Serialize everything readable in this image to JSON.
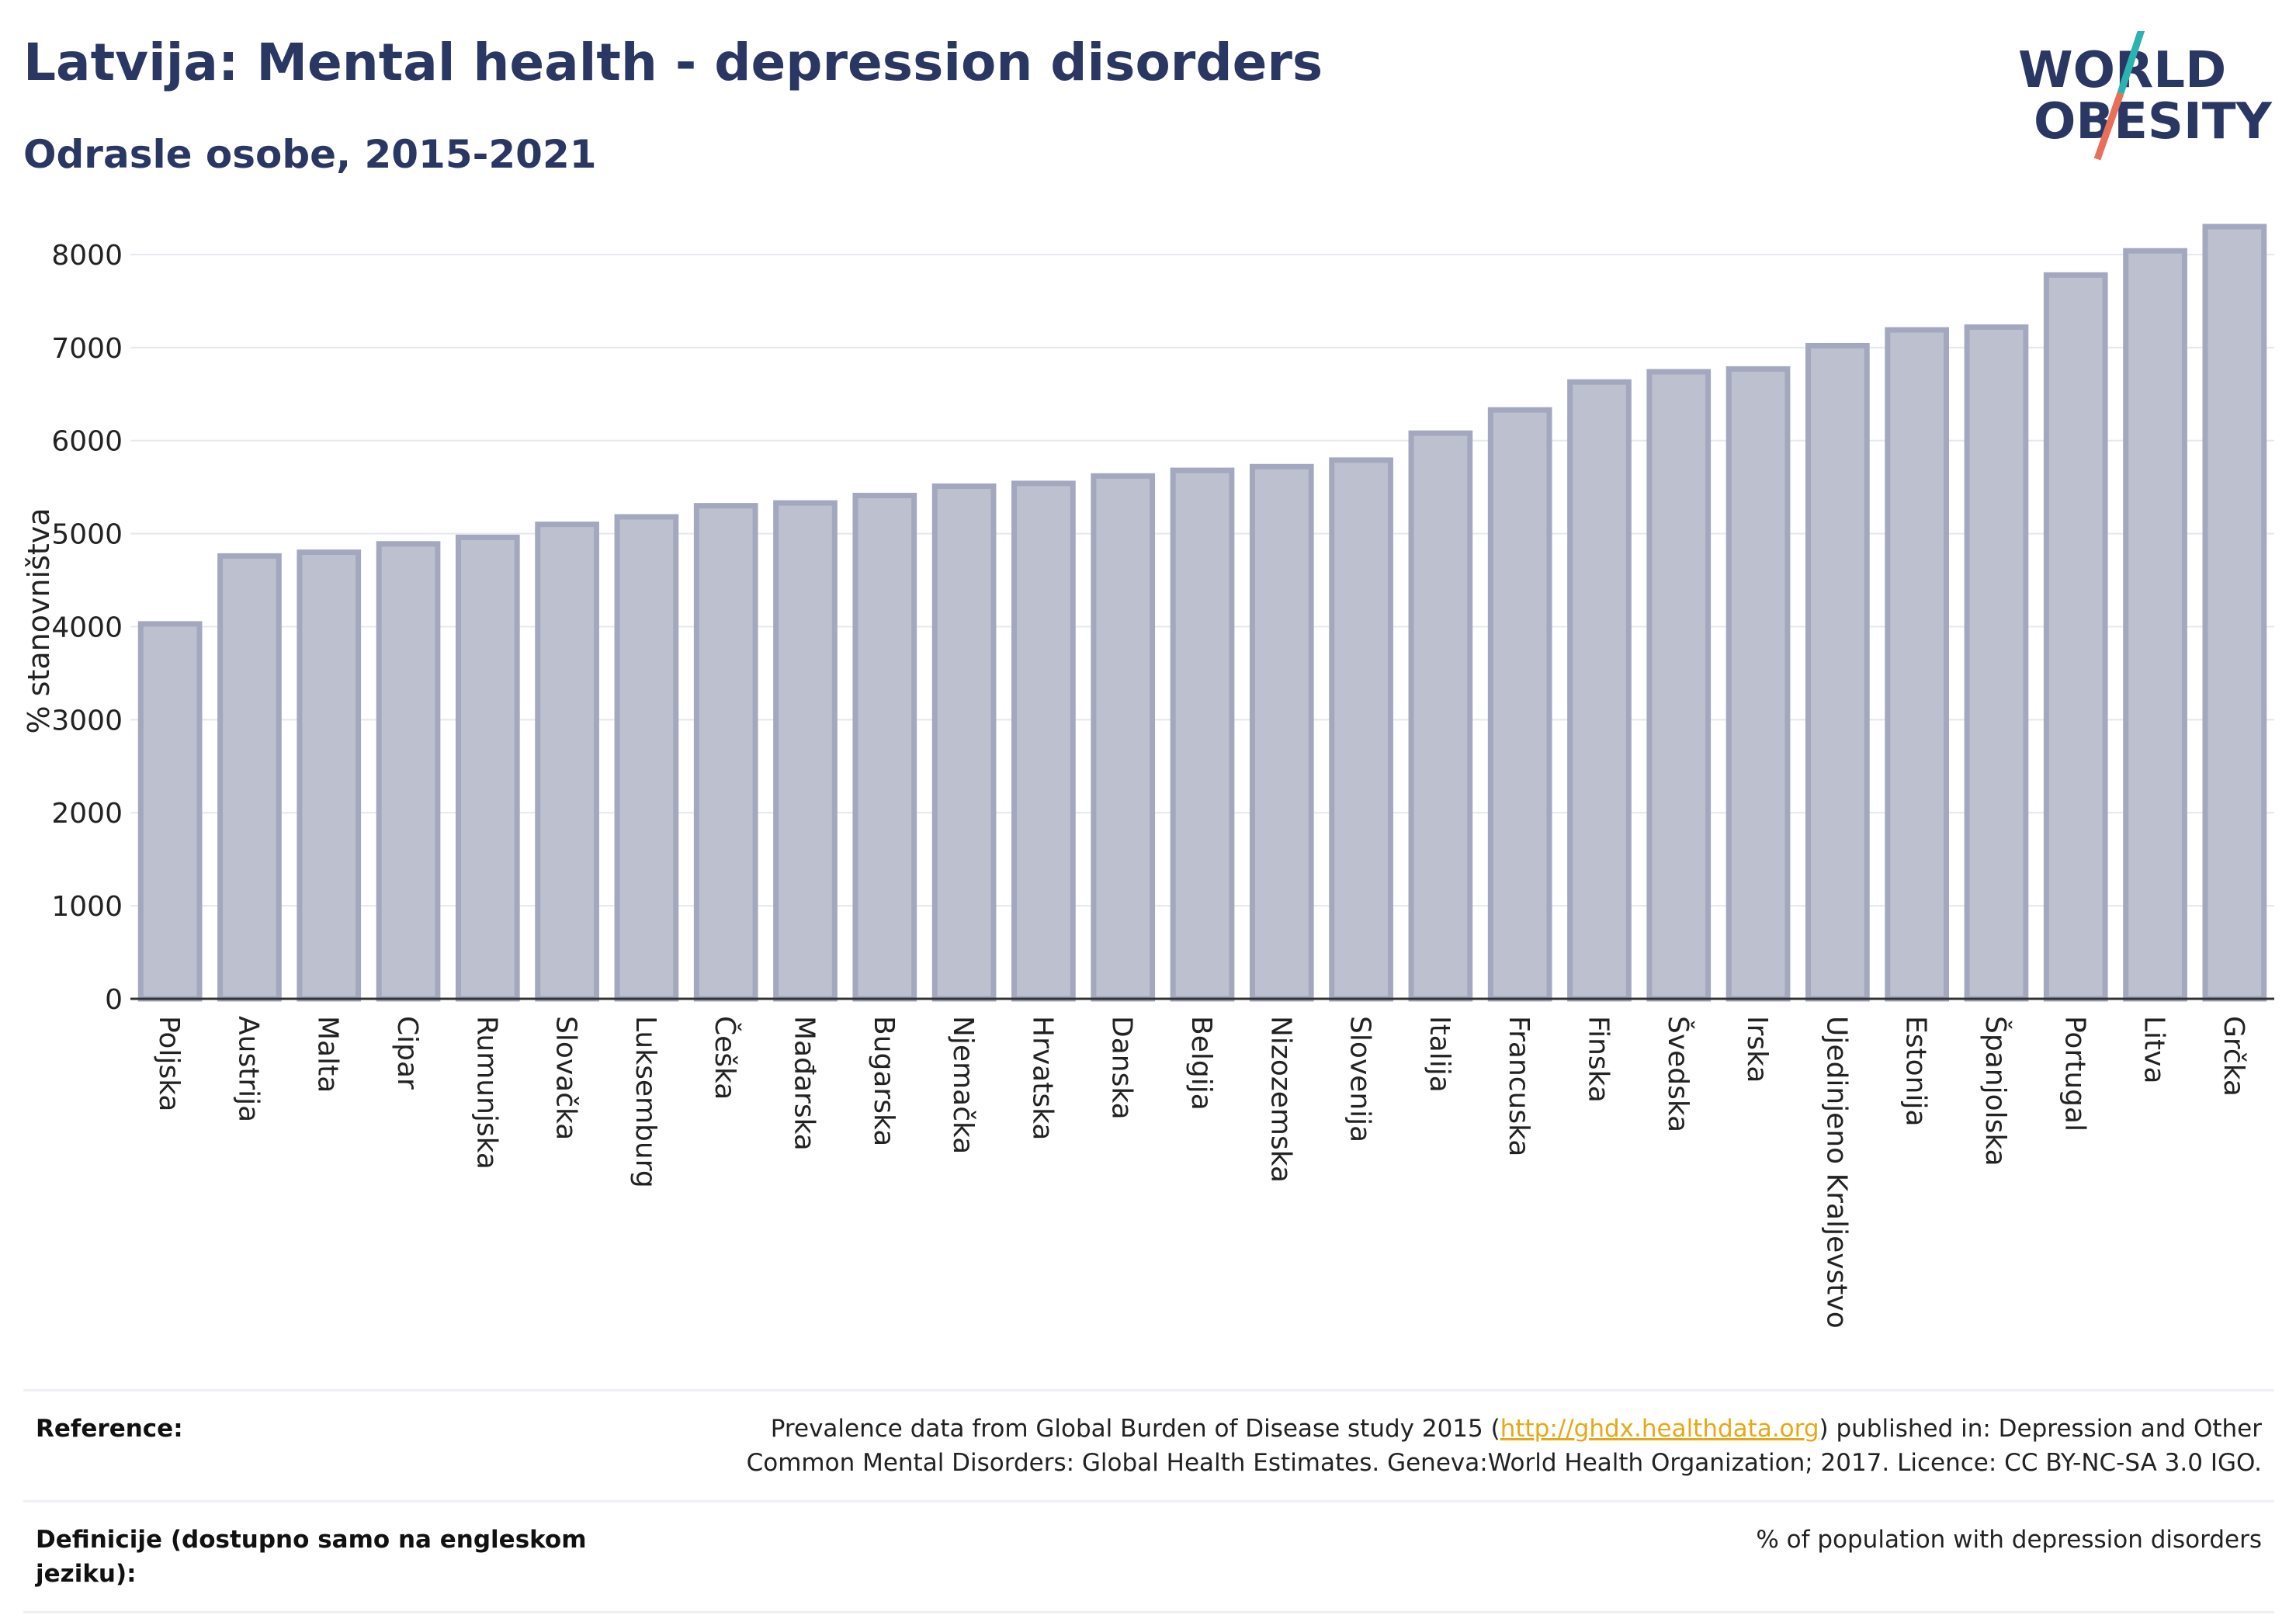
{
  "header": {
    "title": "Latvija: Mental health - depression disorders",
    "subtitle": "Odrasle osobe, 2015-2021"
  },
  "logo": {
    "line1": "WORLD",
    "line2": "OBESITY",
    "accent_teal": "#2bb3b1",
    "accent_coral": "#e8705a"
  },
  "chart_data": {
    "type": "bar",
    "ylabel": "% stanovništva",
    "ylim": [
      0,
      8400
    ],
    "yticks": [
      0,
      1000,
      2000,
      3000,
      4000,
      5000,
      6000,
      7000,
      8000
    ],
    "grid": true,
    "bar_fill": "#bcc0cf",
    "bar_stroke": "#a3a8bf",
    "categories": [
      "Poljska",
      "Austrija",
      "Malta",
      "Cipar",
      "Rumunjska",
      "Slovačka",
      "Luksemburg",
      "Češka",
      "Mađarska",
      "Bugarska",
      "Njemačka",
      "Hrvatska",
      "Danska",
      "Belgija",
      "Nizozemska",
      "Slovenija",
      "Italija",
      "Francuska",
      "Finska",
      "Švedska",
      "Irska",
      "Ujedinjeno Kraljevstvo",
      "Estonija",
      "Španjolska",
      "Portugal",
      "Litva",
      "Grčka"
    ],
    "values": [
      4030,
      4760,
      4800,
      4890,
      4960,
      5100,
      5180,
      5300,
      5330,
      5410,
      5510,
      5540,
      5620,
      5680,
      5720,
      5790,
      6080,
      6330,
      6630,
      6740,
      6770,
      7020,
      7190,
      7220,
      7780,
      8040,
      8300
    ]
  },
  "footer": {
    "reference_label": "Reference:",
    "reference_text_before": "Prevalence data from Global Burden of Disease study 2015 (",
    "reference_link": "http://ghdx.healthdata.org",
    "reference_text_after": ") published in: Depression and Other Common Mental Disorders: Global Health Estimates. Geneva:World Health Organization; 2017. Licence: CC BY-NC-SA 3.0 IGO.",
    "definition_label": "Definicije (dostupno samo na engleskom jeziku):",
    "definition_text": "% of population with depression disorders"
  }
}
